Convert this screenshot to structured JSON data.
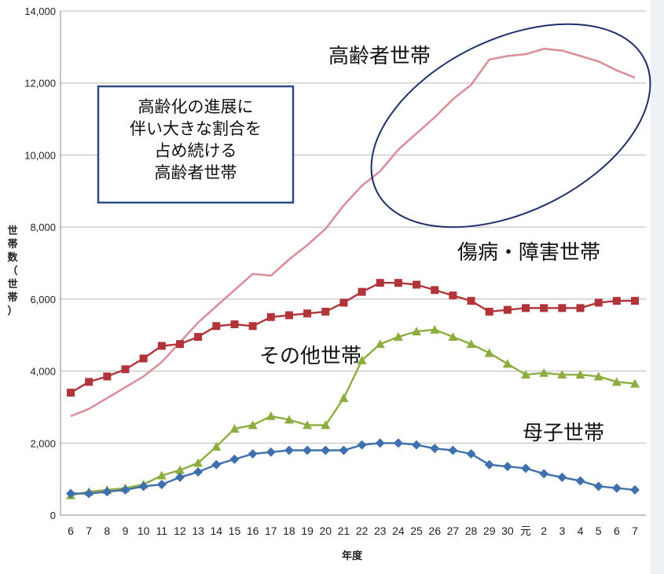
{
  "chart_data": {
    "type": "line",
    "xlabel": "年度",
    "ylabel": "世帯数（世帯）",
    "ylim": [
      0,
      14000
    ],
    "yticks": [
      0,
      2000,
      4000,
      6000,
      8000,
      10000,
      12000,
      14000
    ],
    "ytick_labels": [
      "0",
      "2,000",
      "4,000",
      "6,000",
      "8,000",
      "10,000",
      "12,000",
      "14,000"
    ],
    "categories": [
      "6",
      "7",
      "8",
      "9",
      "10",
      "11",
      "12",
      "13",
      "14",
      "15",
      "16",
      "17",
      "18",
      "19",
      "20",
      "21",
      "22",
      "23",
      "24",
      "25",
      "26",
      "27",
      "28",
      "29",
      "30",
      "元",
      "2",
      "3",
      "4",
      "5",
      "6",
      "7"
    ],
    "grid": true,
    "legend": "none",
    "series": [
      {
        "name": "高齢者世帯",
        "color": "#d9909a",
        "marker": "none",
        "values": [
          2750,
          2950,
          3250,
          3550,
          3850,
          4250,
          4800,
          5350,
          5800,
          6250,
          6700,
          6650,
          7100,
          7500,
          7950,
          8600,
          9150,
          9550,
          10150,
          10600,
          11050,
          11550,
          11950,
          12650,
          12750,
          12800,
          12950,
          12900,
          12750,
          12600,
          12350,
          12150
        ]
      },
      {
        "name": "傷病・障害世帯",
        "color": "#b0343a",
        "marker": "square",
        "values": [
          3400,
          3700,
          3850,
          4050,
          4350,
          4700,
          4750,
          4950,
          5250,
          5300,
          5250,
          5500,
          5550,
          5600,
          5650,
          5900,
          6200,
          6450,
          6450,
          6400,
          6250,
          6100,
          5950,
          5650,
          5700,
          5750,
          5750,
          5750,
          5750,
          5900,
          5950,
          5950
        ]
      },
      {
        "name": "その他世帯",
        "color": "#8cad3f",
        "marker": "triangle",
        "values": [
          550,
          650,
          700,
          750,
          850,
          1100,
          1250,
          1450,
          1900,
          2400,
          2500,
          2750,
          2650,
          2500,
          2500,
          3250,
          4300,
          4750,
          4950,
          5100,
          5150,
          4950,
          4750,
          4500,
          4200,
          3900,
          3950,
          3900,
          3900,
          3850,
          3700,
          3650
        ]
      },
      {
        "name": "母子世帯",
        "color": "#3f6fad",
        "marker": "diamond",
        "values": [
          600,
          600,
          650,
          700,
          800,
          850,
          1050,
          1200,
          1400,
          1550,
          1700,
          1750,
          1800,
          1800,
          1800,
          1800,
          1950,
          2000,
          2000,
          1950,
          1850,
          1800,
          1700,
          1400,
          1350,
          1300,
          1150,
          1050,
          950,
          800,
          750,
          700
        ]
      }
    ],
    "annotations": {
      "box_lines": [
        "高齢化の進展に",
        "伴い大きな割合を",
        "占め続ける",
        "高齢者世帯"
      ],
      "box_border_color": "#2e4a86",
      "ellipse_color": "#1f2f6b",
      "series_labels": [
        "高齢者世帯",
        "傷病・障害世帯",
        "その他世帯",
        "母子世帯"
      ]
    }
  }
}
